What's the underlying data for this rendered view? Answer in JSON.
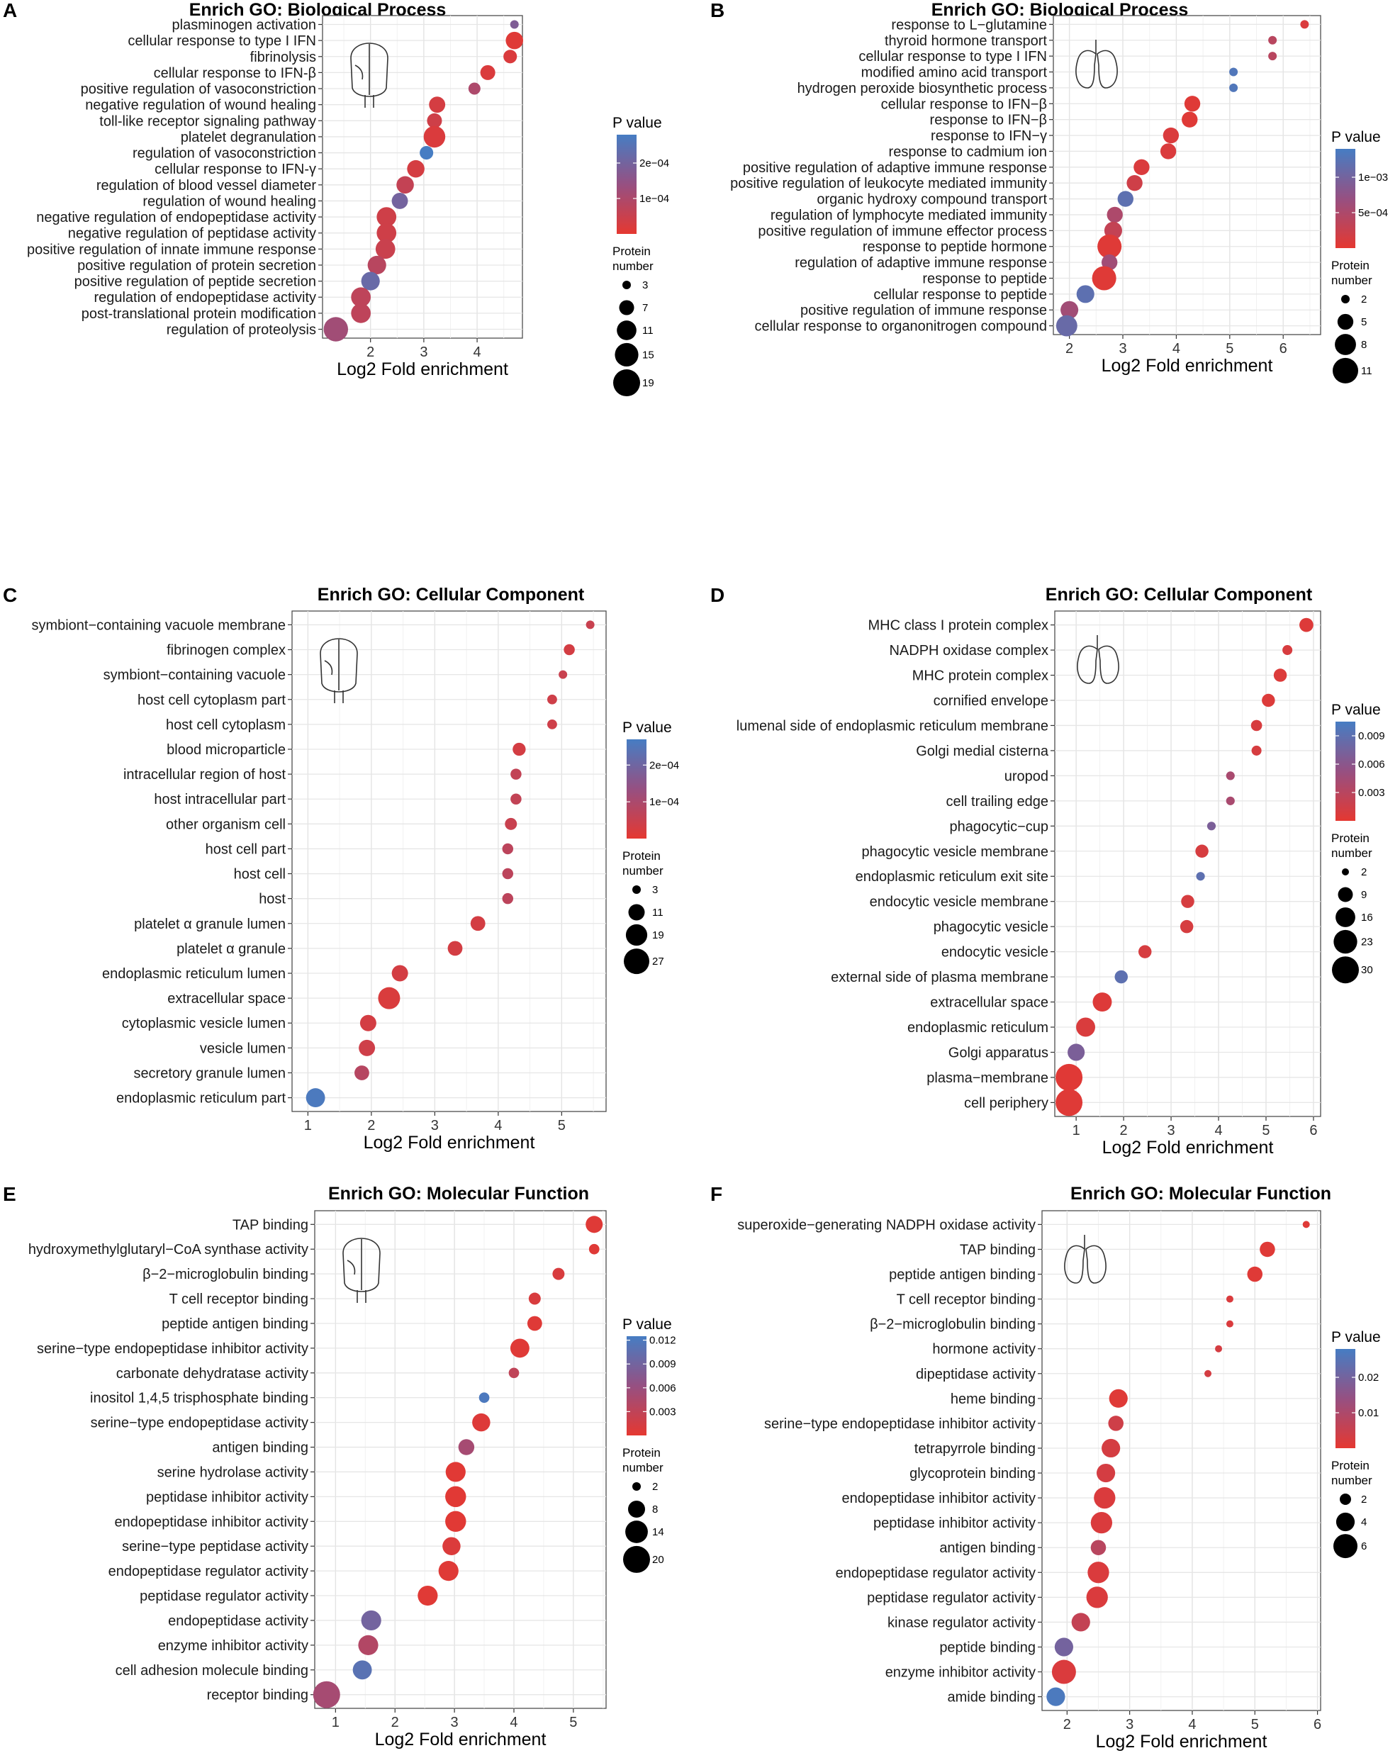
{
  "chart_data": [
    {
      "panel": "A",
      "type": "scatter",
      "title": "Enrich GO: Biological Process",
      "xlabel": "Log2 Fold enrichment",
      "xlim": [
        1.1,
        4.85
      ],
      "xticks": [
        2,
        3,
        4
      ],
      "icon": "brain-icon",
      "categories": [
        "plasminogen activation",
        "cellular response to type I IFN",
        "fibrinolysis",
        "cellular response to IFN-β",
        "positive regulation of vasoconstriction",
        "negative regulation of wound healing",
        "toll-like receptor signaling pathway",
        "platelet degranulation",
        "regulation of vasoconstriction",
        "cellular response to IFN-γ",
        "regulation of blood vessel diameter",
        "regulation of wound healing",
        "negative regulation of endopeptidase activity",
        "negative regulation of peptidase activity",
        "positive regulation of innate immune response",
        "positive regulation of protein secretion",
        "positive regulation of peptide secretion",
        "regulation of endopeptidase activity",
        "post-translational protein modification",
        "regulation of proteolysis"
      ],
      "x": [
        4.7,
        4.7,
        4.62,
        4.2,
        3.95,
        3.25,
        3.2,
        3.2,
        3.05,
        2.85,
        2.65,
        2.55,
        2.3,
        2.3,
        2.28,
        2.12,
        2.0,
        1.82,
        1.82,
        1.35
      ],
      "size": [
        3,
        9,
        6,
        7,
        5,
        8,
        7,
        13,
        6,
        9,
        9,
        8,
        11,
        11,
        11,
        10,
        10,
        11,
        11,
        16
      ],
      "pvalue": [
        0.00018,
        1e-05,
        2e-05,
        2e-05,
        0.0001,
        3e-05,
        4e-05,
        2e-05,
        0.00028,
        3e-05,
        6e-05,
        0.0002,
        4e-05,
        4e-05,
        5e-05,
        8e-05,
        0.00022,
        7e-05,
        7e-05,
        0.00012
      ],
      "legend": {
        "pvalue_title": "P value",
        "color_range": [
          0,
          0.00028
        ],
        "color_ticks": [
          {
            "label": "2e−04",
            "value": 0.0002
          },
          {
            "label": "1e−04",
            "value": 0.0001
          }
        ],
        "size_title": [
          "Protein",
          "number"
        ],
        "size_ticks": [
          3,
          7,
          11,
          15,
          19
        ]
      }
    },
    {
      "panel": "B",
      "type": "scatter",
      "title": "Enrich GO: Biological Process",
      "xlabel": "Log2 Fold enrichment",
      "xlim": [
        1.7,
        6.7
      ],
      "xticks": [
        2,
        3,
        4,
        5,
        6
      ],
      "icon": "lungs-icon",
      "categories": [
        "response to L−glutamine",
        "thyroid hormone transport",
        "cellular response to type I IFN",
        "modified amino acid transport",
        "hydrogen peroxide biosynthetic process",
        "cellular response to IFN−β",
        "response to IFN−β",
        "response to IFN−γ",
        "response to cadmium ion",
        "positive regulation of adaptive immune response",
        "positive regulation of leukocyte mediated immunity",
        "organic hydroxy compound transport",
        "regulation of lymphocyte mediated immunity",
        "positive regulation of immune effector process",
        "response to peptide hormone",
        "regulation of adaptive immune response",
        "response to peptide",
        "cellular response to peptide",
        "positive regulation of immune response",
        "cellular response to organonitrogen compound"
      ],
      "x": [
        6.4,
        5.8,
        5.8,
        5.07,
        5.07,
        4.3,
        4.25,
        3.9,
        3.85,
        3.35,
        3.22,
        3.05,
        2.85,
        2.82,
        2.75,
        2.75,
        2.65,
        2.3,
        2.0,
        1.95
      ],
      "size": [
        2,
        2,
        2,
        2,
        2,
        5,
        5,
        5,
        5,
        5,
        5,
        5,
        5,
        6,
        10,
        5,
        10,
        6,
        6,
        8
      ],
      "pvalue": [
        0.0001,
        0.0004,
        0.0004,
        0.0013,
        0.0013,
        5e-05,
        5e-05,
        0.0001,
        0.0001,
        0.0001,
        0.0002,
        0.0012,
        0.0005,
        0.0003,
        5e-05,
        0.0006,
        5e-05,
        0.0012,
        0.0006,
        0.0011
      ],
      "legend": {
        "pvalue_title": "P value",
        "color_range": [
          0,
          0.0014
        ],
        "color_ticks": [
          {
            "label": "1e−03",
            "value": 0.001
          },
          {
            "label": "5e−04",
            "value": 0.0005
          }
        ],
        "size_title": [
          "Protein",
          "number"
        ],
        "size_ticks": [
          2,
          5,
          8,
          11
        ]
      }
    },
    {
      "panel": "C",
      "type": "scatter",
      "title": "Enrich GO: Cellular Component",
      "xlabel": "Log2 Fold enrichment",
      "xlim": [
        0.75,
        5.7
      ],
      "xticks": [
        1,
        2,
        3,
        4,
        5
      ],
      "icon": "brain-icon",
      "categories": [
        "symbiont−containing vacuole membrane",
        "fibrinogen complex",
        "symbiont−containing vacuole",
        "host cell cytoplasm part",
        "host cell cytoplasm",
        "blood microparticle",
        "intracellular region of host",
        "host intracellular part",
        "other organism cell",
        "host cell part",
        "host cell",
        "host",
        "platelet α granule lumen",
        "platelet α granule",
        "endoplasmic reticulum lumen",
        "extracellular space",
        "cytoplasmic vesicle lumen",
        "vesicle lumen",
        "secretory granule lumen",
        "endoplasmic reticulum part"
      ],
      "x": [
        5.45,
        5.12,
        5.02,
        4.85,
        4.85,
        4.33,
        4.28,
        4.28,
        4.2,
        4.15,
        4.15,
        4.15,
        3.68,
        3.32,
        2.45,
        2.28,
        1.95,
        1.93,
        1.85,
        1.12
      ],
      "size": [
        3,
        5,
        3,
        4,
        4,
        7,
        5,
        5,
        6,
        5,
        5,
        5,
        9,
        9,
        11,
        20,
        11,
        11,
        9,
        15
      ],
      "pvalue": [
        5e-05,
        3e-05,
        5e-05,
        4e-05,
        4e-05,
        3e-05,
        6e-05,
        6e-05,
        5e-05,
        7e-05,
        7e-05,
        7e-05,
        3e-05,
        3e-05,
        3e-05,
        2e-05,
        3e-05,
        4e-05,
        8e-05,
        0.00026
      ],
      "legend": {
        "pvalue_title": "P value",
        "color_range": [
          0,
          0.00027
        ],
        "color_ticks": [
          {
            "label": "2e−04",
            "value": 0.0002
          },
          {
            "label": "1e−04",
            "value": 0.0001
          }
        ],
        "size_title": [
          "Protein",
          "number"
        ],
        "size_ticks": [
          3,
          11,
          19,
          27
        ]
      }
    },
    {
      "panel": "D",
      "type": "scatter",
      "title": "Enrich GO: Cellular Component",
      "xlabel": "Log2 Fold enrichment",
      "xlim": [
        0.55,
        6.15
      ],
      "xticks": [
        1,
        2,
        3,
        4,
        5,
        6
      ],
      "icon": "lungs-icon",
      "categories": [
        "MHC class I protein complex",
        "NADPH oxidase complex",
        "MHC protein complex",
        "cornified envelope",
        "lumenal side of endoplasmic reticulum membrane",
        "Golgi medial cisterna",
        "uropod",
        "cell trailing edge",
        "phagocytic−cup",
        "phagocytic vesicle membrane",
        "endoplasmic reticulum exit site",
        "endocytic vesicle membrane",
        "phagocytic vesicle",
        "endocytic vesicle",
        "external side of plasma membrane",
        "extracellular space",
        "endoplasmic reticulum",
        "Golgi apparatus",
        "plasma−membrane",
        "cell periphery"
      ],
      "x": [
        5.85,
        5.45,
        5.3,
        5.05,
        4.8,
        4.8,
        4.25,
        4.25,
        3.85,
        3.65,
        3.62,
        3.35,
        3.33,
        2.45,
        1.95,
        1.55,
        1.2,
        1.0,
        0.85,
        0.85
      ],
      "size": [
        8,
        4,
        7,
        7,
        5,
        4,
        3,
        3,
        3,
        7,
        3,
        7,
        7,
        7,
        7,
        15,
        15,
        12,
        30,
        30
      ],
      "pvalue": [
        0.0005,
        0.0009,
        0.0006,
        0.0006,
        0.0009,
        0.001,
        0.004,
        0.004,
        0.007,
        0.001,
        0.009,
        0.001,
        0.001,
        0.001,
        0.009,
        0.0005,
        0.0008,
        0.007,
        0.0003,
        0.0004
      ],
      "legend": {
        "pvalue_title": "P value",
        "color_range": [
          0,
          0.0105
        ],
        "color_ticks": [
          {
            "label": "0.009",
            "value": 0.009
          },
          {
            "label": "0.006",
            "value": 0.006
          },
          {
            "label": "0.003",
            "value": 0.003
          }
        ],
        "size_title": [
          "Protein",
          "number"
        ],
        "size_ticks": [
          2,
          9,
          16,
          23,
          30
        ]
      }
    },
    {
      "panel": "E",
      "type": "scatter",
      "title": "Enrich GO: Molecular Function",
      "xlabel": "Log2 Fold enrichment",
      "xlim": [
        0.65,
        5.55
      ],
      "xticks": [
        1,
        2,
        3,
        4,
        5
      ],
      "icon": "brain-icon",
      "categories": [
        "TAP binding",
        "hydroxymethylglutaryl−CoA synthase activity",
        "β−2−microglobulin binding",
        "T cell receptor binding",
        "peptide antigen binding",
        "serine−type endopeptidase inhibitor activity",
        "carbonate dehydratase activity",
        "inositol 1,4,5 trisphosphate binding",
        "serine−type endopeptidase activity",
        "antigen binding",
        "serine hydrolase activity",
        "peptidase inhibitor activity",
        "endopeptidase inhibitor activity",
        "serine−type peptidase activity",
        "endopeptidase regulator activity",
        "peptidase regulator activity",
        "endopeptidase activity",
        "enzyme inhibitor activity",
        "cell adhesion molecule binding",
        "receptor binding"
      ],
      "x": [
        5.35,
        5.35,
        4.75,
        4.35,
        4.35,
        4.1,
        4.0,
        3.5,
        3.45,
        3.2,
        3.02,
        3.02,
        3.02,
        2.95,
        2.9,
        2.55,
        1.6,
        1.55,
        1.45,
        0.85
      ],
      "size": [
        8,
        3,
        4,
        4,
        6,
        10,
        3,
        3,
        9,
        7,
        11,
        12,
        12,
        9,
        11,
        11,
        11,
        11,
        10,
        20
      ],
      "pvalue": [
        0.0005,
        0.0005,
        0.001,
        0.001,
        0.0005,
        0.0005,
        0.003,
        0.012,
        0.0006,
        0.005,
        0.0003,
        0.0003,
        0.0003,
        0.0008,
        0.0005,
        0.0004,
        0.009,
        0.004,
        0.011,
        0.005
      ],
      "legend": {
        "pvalue_title": "P value",
        "color_range": [
          0,
          0.0125
        ],
        "color_ticks": [
          {
            "label": "0.012",
            "value": 0.012
          },
          {
            "label": "0.009",
            "value": 0.009
          },
          {
            "label": "0.006",
            "value": 0.006
          },
          {
            "label": "0.003",
            "value": 0.003
          }
        ],
        "size_title": [
          "Protein",
          "number"
        ],
        "size_ticks": [
          2,
          8,
          14,
          20
        ]
      }
    },
    {
      "panel": "F",
      "type": "scatter",
      "title": "Enrich GO: Molecular Function",
      "xlabel": "Log2 Fold enrichment",
      "xlim": [
        1.6,
        6.05
      ],
      "xticks": [
        2,
        3,
        4,
        5,
        6
      ],
      "icon": "lungs-icon",
      "categories": [
        "superoxide−generating NADPH oxidase activity",
        "TAP binding",
        "peptide antigen binding",
        "T cell receptor binding",
        "β−2−microglobulin binding",
        "hormone activity",
        "dipeptidase activity",
        "heme binding",
        "serine−type endopeptidase inhibitor activity",
        "tetrapyrrole binding",
        "glycoprotein binding",
        "endopeptidase inhibitor activity",
        "peptidase inhibitor activity",
        "antigen binding",
        "endopeptidase regulator activity",
        "peptidase regulator activity",
        "kinase regulator activity",
        "peptide binding",
        "enzyme inhibitor activity",
        "amide binding"
      ],
      "x": [
        5.82,
        5.2,
        5.0,
        4.6,
        4.6,
        4.42,
        4.25,
        2.82,
        2.78,
        2.7,
        2.62,
        2.6,
        2.55,
        2.5,
        2.5,
        2.48,
        2.22,
        1.95,
        1.95,
        1.82
      ],
      "size": [
        1,
        3,
        3,
        1,
        1,
        1,
        1,
        4,
        3,
        4,
        4,
        5,
        5,
        3,
        5,
        5,
        4,
        4,
        6,
        4
      ],
      "pvalue": [
        0.001,
        0.001,
        0.001,
        0.002,
        0.002,
        0.003,
        0.003,
        0.001,
        0.004,
        0.003,
        0.003,
        0.002,
        0.002,
        0.008,
        0.002,
        0.002,
        0.006,
        0.02,
        0.002,
        0.027
      ],
      "legend": {
        "pvalue_title": "P value",
        "color_range": [
          0,
          0.028
        ],
        "color_ticks": [
          {
            "label": "0.02",
            "value": 0.02
          },
          {
            "label": "0.01",
            "value": 0.01
          }
        ],
        "size_title": [
          "Protein",
          "number"
        ],
        "size_ticks": [
          2,
          4,
          6
        ]
      }
    }
  ]
}
